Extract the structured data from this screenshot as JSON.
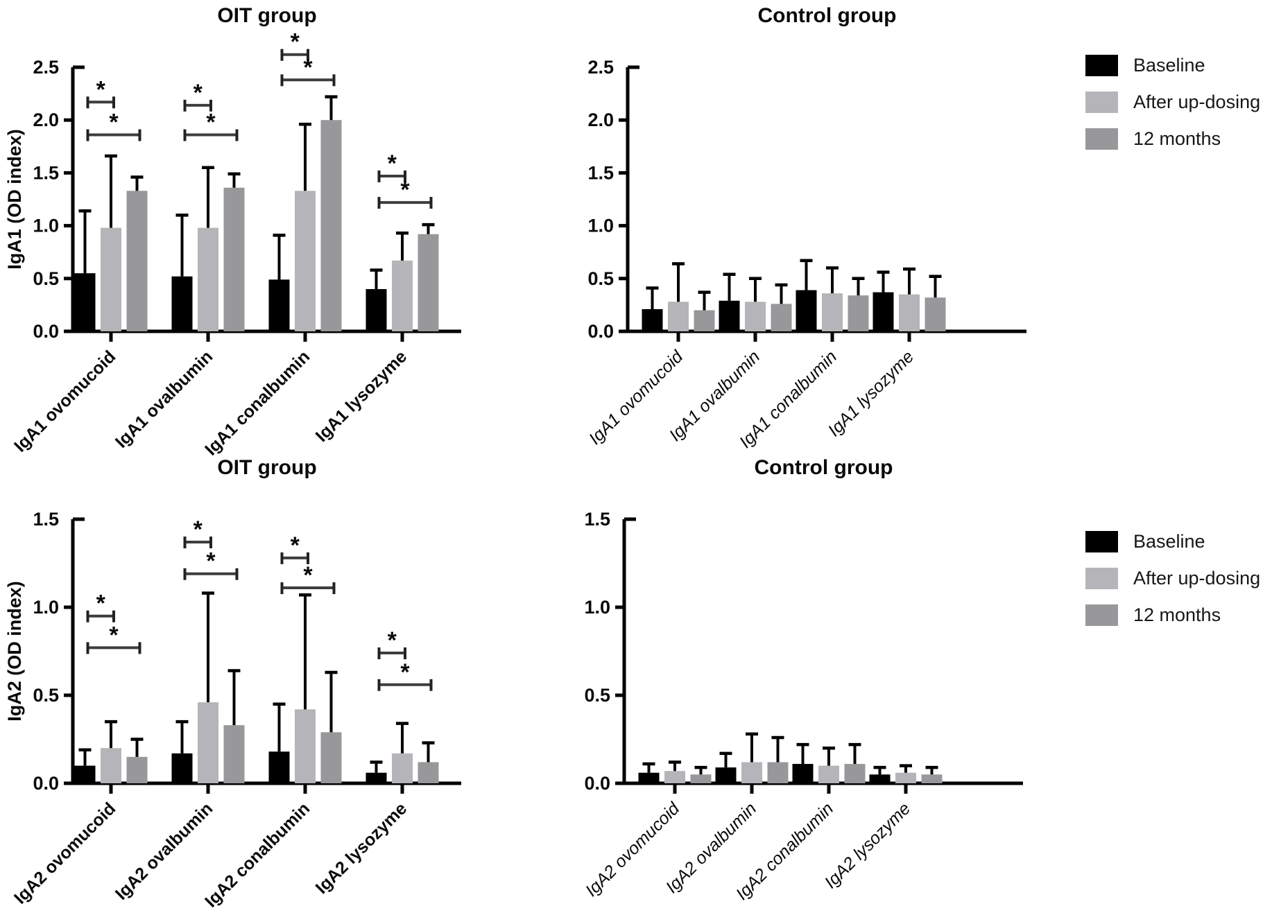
{
  "legend": {
    "items": [
      {
        "label": "Baseline",
        "color": "#000000"
      },
      {
        "label": "After up-dosing",
        "color": "#b5b5b9"
      },
      {
        "label": "12 months",
        "color": "#98989b"
      }
    ]
  },
  "chart_data": [
    {
      "type": "bar",
      "title": "OIT group",
      "ylabel": "IgA1 (OD index)",
      "ylim": [
        0,
        2.5
      ],
      "yticks": [
        0.0,
        0.5,
        1.0,
        1.5,
        2.0,
        2.5
      ],
      "grid": false,
      "legend_position": "outside-right",
      "category_label_style": "bold",
      "categories": [
        "IgA1 ovomucoid",
        "IgA1 ovalbumin",
        "IgA1 conalbumin",
        "IgA1 lysozyme"
      ],
      "series": [
        {
          "name": "Baseline",
          "color": "#000000",
          "values": [
            0.55,
            0.52,
            0.49,
            0.4
          ],
          "error_top": [
            1.14,
            1.1,
            0.91,
            0.58
          ]
        },
        {
          "name": "After up-dosing",
          "color": "#b5b5b9",
          "values": [
            0.98,
            0.98,
            1.33,
            0.67
          ],
          "error_top": [
            1.66,
            1.55,
            1.96,
            0.93
          ]
        },
        {
          "name": "12 months",
          "color": "#98989b",
          "values": [
            1.33,
            1.36,
            2.0,
            0.92
          ],
          "error_top": [
            1.46,
            1.49,
            2.22,
            1.01
          ]
        }
      ],
      "significance": [
        {
          "category": 0,
          "between": [
            0,
            1
          ],
          "y": 2.17,
          "label": "*"
        },
        {
          "category": 0,
          "between": [
            0,
            2
          ],
          "y": 1.86,
          "label": "*"
        },
        {
          "category": 1,
          "between": [
            0,
            1
          ],
          "y": 2.14,
          "label": "*"
        },
        {
          "category": 1,
          "between": [
            0,
            2
          ],
          "y": 1.86,
          "label": "*"
        },
        {
          "category": 2,
          "between": [
            0,
            1
          ],
          "y": 2.62,
          "label": "*"
        },
        {
          "category": 2,
          "between": [
            0,
            2
          ],
          "y": 2.38,
          "label": "*"
        },
        {
          "category": 3,
          "between": [
            0,
            1
          ],
          "y": 1.47,
          "label": "*"
        },
        {
          "category": 3,
          "between": [
            0,
            2
          ],
          "y": 1.22,
          "label": "*"
        }
      ]
    },
    {
      "type": "bar",
      "title": "Control group",
      "ylabel": "",
      "ylim": [
        0,
        2.5
      ],
      "yticks": [
        0.0,
        0.5,
        1.0,
        1.5,
        2.0,
        2.5
      ],
      "grid": false,
      "legend_position": "outside-right",
      "category_label_style": "italic",
      "categories": [
        "IgA1 ovomucoid",
        "IgA1 ovalbumin",
        "IgA1 conalbumin",
        "IgA1 lysozyme"
      ],
      "series": [
        {
          "name": "Baseline",
          "color": "#000000",
          "values": [
            0.21,
            0.29,
            0.39,
            0.37
          ],
          "error_top": [
            0.41,
            0.54,
            0.67,
            0.56
          ]
        },
        {
          "name": "After up-dosing",
          "color": "#b5b5b9",
          "values": [
            0.28,
            0.28,
            0.36,
            0.35
          ],
          "error_top": [
            0.64,
            0.5,
            0.6,
            0.59
          ]
        },
        {
          "name": "12 months",
          "color": "#98989b",
          "values": [
            0.2,
            0.26,
            0.34,
            0.32
          ],
          "error_top": [
            0.37,
            0.44,
            0.5,
            0.52
          ]
        }
      ],
      "significance": []
    },
    {
      "type": "bar",
      "title": "OIT group",
      "ylabel": "IgA2 (OD index)",
      "ylim": [
        0,
        1.5
      ],
      "yticks": [
        0.0,
        0.5,
        1.0,
        1.5
      ],
      "grid": false,
      "legend_position": "outside-right",
      "category_label_style": "bold",
      "categories": [
        "IgA2 ovomucoid",
        "IgA2 ovalbumin",
        "IgA2 conalbumin",
        "IgA2 lysozyme"
      ],
      "series": [
        {
          "name": "Baseline",
          "color": "#000000",
          "values": [
            0.1,
            0.17,
            0.18,
            0.06
          ],
          "error_top": [
            0.19,
            0.35,
            0.45,
            0.12
          ]
        },
        {
          "name": "After up-dosing",
          "color": "#b5b5b9",
          "values": [
            0.2,
            0.46,
            0.42,
            0.17
          ],
          "error_top": [
            0.35,
            1.08,
            1.07,
            0.34
          ]
        },
        {
          "name": "12 months",
          "color": "#98989b",
          "values": [
            0.15,
            0.33,
            0.29,
            0.12
          ],
          "error_top": [
            0.25,
            0.64,
            0.63,
            0.23
          ]
        }
      ],
      "significance": [
        {
          "category": 0,
          "between": [
            0,
            1
          ],
          "y": 0.95,
          "label": "*"
        },
        {
          "category": 0,
          "between": [
            0,
            2
          ],
          "y": 0.77,
          "label": "*"
        },
        {
          "category": 1,
          "between": [
            0,
            1
          ],
          "y": 1.37,
          "label": "*"
        },
        {
          "category": 1,
          "between": [
            0,
            2
          ],
          "y": 1.19,
          "label": "*"
        },
        {
          "category": 2,
          "between": [
            0,
            1
          ],
          "y": 1.28,
          "label": "*"
        },
        {
          "category": 2,
          "between": [
            0,
            2
          ],
          "y": 1.11,
          "label": "*"
        },
        {
          "category": 3,
          "between": [
            0,
            1
          ],
          "y": 0.74,
          "label": "*"
        },
        {
          "category": 3,
          "between": [
            0,
            2
          ],
          "y": 0.56,
          "label": "*"
        }
      ]
    },
    {
      "type": "bar",
      "title": "Control group",
      "ylabel": "",
      "ylim": [
        0,
        1.5
      ],
      "yticks": [
        0.0,
        0.5,
        1.0,
        1.5
      ],
      "grid": false,
      "legend_position": "outside-right",
      "category_label_style": "italic",
      "categories": [
        "IgA2 ovomucoid",
        "IgA2 ovalbumin",
        "IgA2 conalbumin",
        "IgA2 lysozyme"
      ],
      "series": [
        {
          "name": "Baseline",
          "color": "#000000",
          "values": [
            0.06,
            0.09,
            0.11,
            0.05
          ],
          "error_top": [
            0.11,
            0.17,
            0.22,
            0.09
          ]
        },
        {
          "name": "After up-dosing",
          "color": "#b5b5b9",
          "values": [
            0.07,
            0.12,
            0.1,
            0.06
          ],
          "error_top": [
            0.12,
            0.28,
            0.2,
            0.1
          ]
        },
        {
          "name": "12 months",
          "color": "#98989b",
          "values": [
            0.05,
            0.12,
            0.11,
            0.05
          ],
          "error_top": [
            0.09,
            0.26,
            0.22,
            0.09
          ]
        }
      ],
      "significance": []
    }
  ]
}
